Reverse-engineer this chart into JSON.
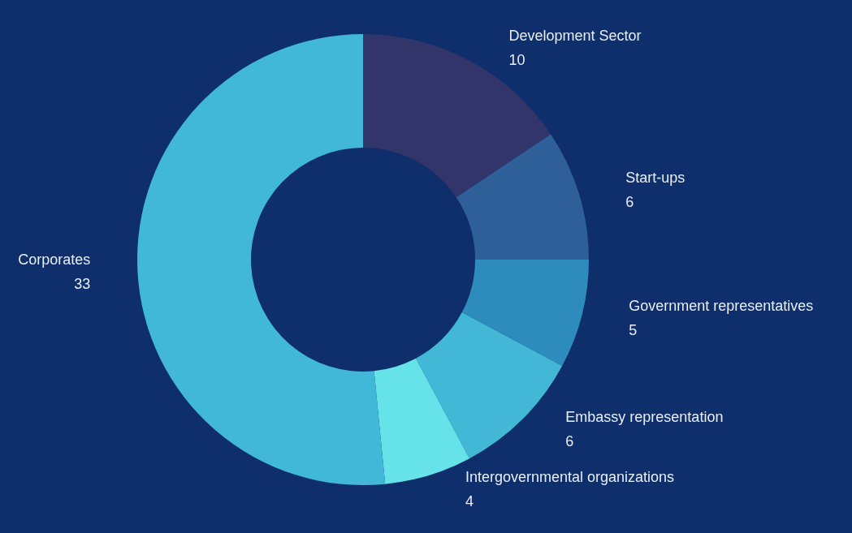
{
  "chart_data": {
    "type": "donut",
    "categories": [
      "Development Sector",
      "Start-ups",
      "Government representatives",
      "Embassy representation",
      "Intergovernmental organizations",
      "Corporates"
    ],
    "values": [
      10,
      6,
      5,
      6,
      4,
      33
    ],
    "colors": [
      "#32356a",
      "#2f5f99",
      "#2e8cbc",
      "#42b8d6",
      "#66e3e8",
      "#42b8d8"
    ],
    "data_labels": true,
    "legend": false
  }
}
